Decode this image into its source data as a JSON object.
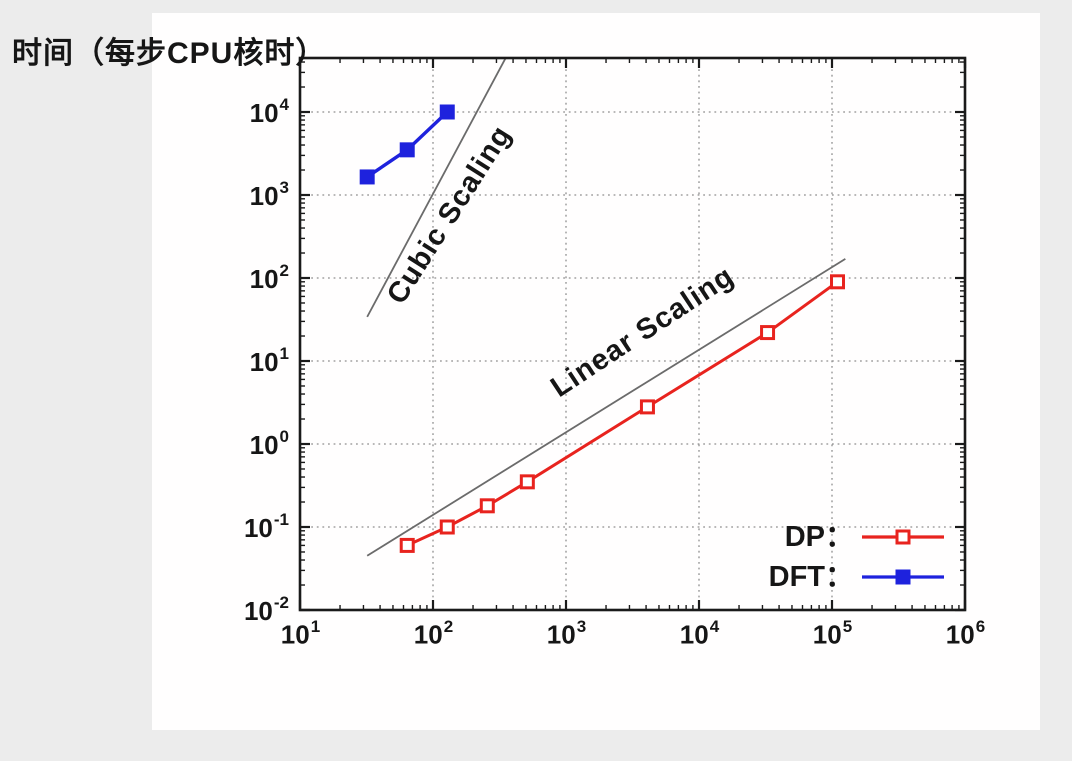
{
  "figure": {
    "title": "时间（每步CPU核时）"
  },
  "legend": {
    "items": [
      {
        "label": "DP：",
        "series": "DP"
      },
      {
        "label": "DFT：",
        "series": "DFT"
      }
    ]
  },
  "chart_data": {
    "type": "line",
    "title": "",
    "ylabel": "时间（每步CPU核时）",
    "xlabel": "",
    "x_scale": "log",
    "y_scale": "log",
    "xlim": [
      10,
      1000000
    ],
    "ylim": [
      0.01,
      44000
    ],
    "grid": true,
    "legend_position": "bottom-right",
    "tick_base": "10",
    "x_tick_exponents": [
      "1",
      "2",
      "3",
      "4",
      "5",
      "6"
    ],
    "y_tick_exponents": [
      "4",
      "3",
      "2",
      "1",
      "0",
      "-1",
      "-2"
    ],
    "series": [
      {
        "name": "DP",
        "color": "#e8231e",
        "marker": "open-square",
        "points": [
          [
            64,
            0.06
          ],
          [
            128,
            0.1
          ],
          [
            256,
            0.18
          ],
          [
            512,
            0.35
          ],
          [
            4096,
            2.8
          ],
          [
            32768,
            22
          ],
          [
            110000,
            90
          ]
        ]
      },
      {
        "name": "DFT",
        "color": "#1e22dd",
        "marker": "filled-square",
        "points": [
          [
            32,
            1650
          ],
          [
            64,
            3500
          ],
          [
            128,
            10000
          ]
        ]
      }
    ],
    "reference_lines": [
      {
        "label": "Cubic Scaling",
        "color": "#6b6b6b",
        "slope_decades": 3,
        "points": [
          [
            32,
            34
          ],
          [
            350,
            44000
          ]
        ]
      },
      {
        "label": "Linear Scaling",
        "color": "#6b6b6b",
        "slope_decades": 1,
        "points": [
          [
            32,
            0.045
          ],
          [
            126000,
            170
          ]
        ]
      }
    ],
    "colors": {
      "frame": "#1a1a1a",
      "grid": "#8f8f8f",
      "background": "#ececec",
      "panel": "#fffefe"
    }
  }
}
